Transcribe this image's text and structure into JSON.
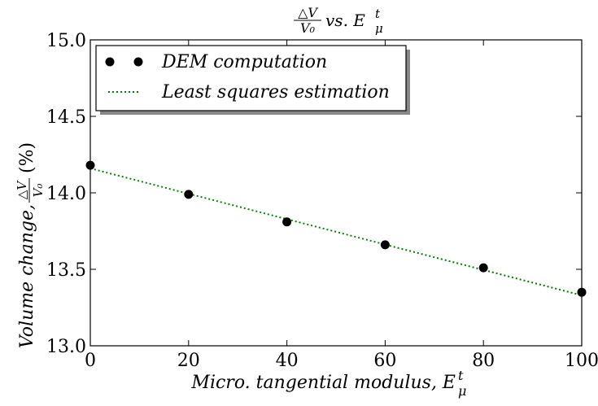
{
  "chart_data": {
    "type": "scatter",
    "title": {
      "frac_num": "△V",
      "frac_den": "V₀",
      "rest": "vs. E",
      "rest_sub": "μ",
      "rest_sup": "t"
    },
    "xlabel": {
      "text": "Micro. tangential modulus,  E",
      "sub": "μ",
      "sup": "t"
    },
    "ylabel": {
      "prefix": "Volume change, ",
      "frac_num": "△V",
      "frac_den": "V₀",
      "suffix": "(%)"
    },
    "xlim": [
      0,
      100
    ],
    "ylim": [
      13.0,
      15.0
    ],
    "xticks": [
      0,
      20,
      40,
      60,
      80,
      100
    ],
    "xtick_labels": [
      "0",
      "20",
      "40",
      "60",
      "80",
      "100"
    ],
    "yticks": [
      13.0,
      13.5,
      14.0,
      14.5,
      15.0
    ],
    "ytick_labels": [
      "13.0",
      "13.5",
      "14.0",
      "14.5",
      "15.0"
    ],
    "grid": false,
    "legend_position": "top-left",
    "series": [
      {
        "name": "DEM computation",
        "kind": "markers",
        "color": "#000000",
        "x": [
          0,
          20,
          40,
          60,
          80,
          100
        ],
        "y": [
          14.18,
          13.99,
          13.81,
          13.66,
          13.51,
          13.35
        ]
      },
      {
        "name": "Least squares estimation",
        "kind": "dotted-line",
        "color": "#008000",
        "x": [
          0,
          100
        ],
        "y": [
          14.16,
          13.33
        ]
      }
    ]
  }
}
